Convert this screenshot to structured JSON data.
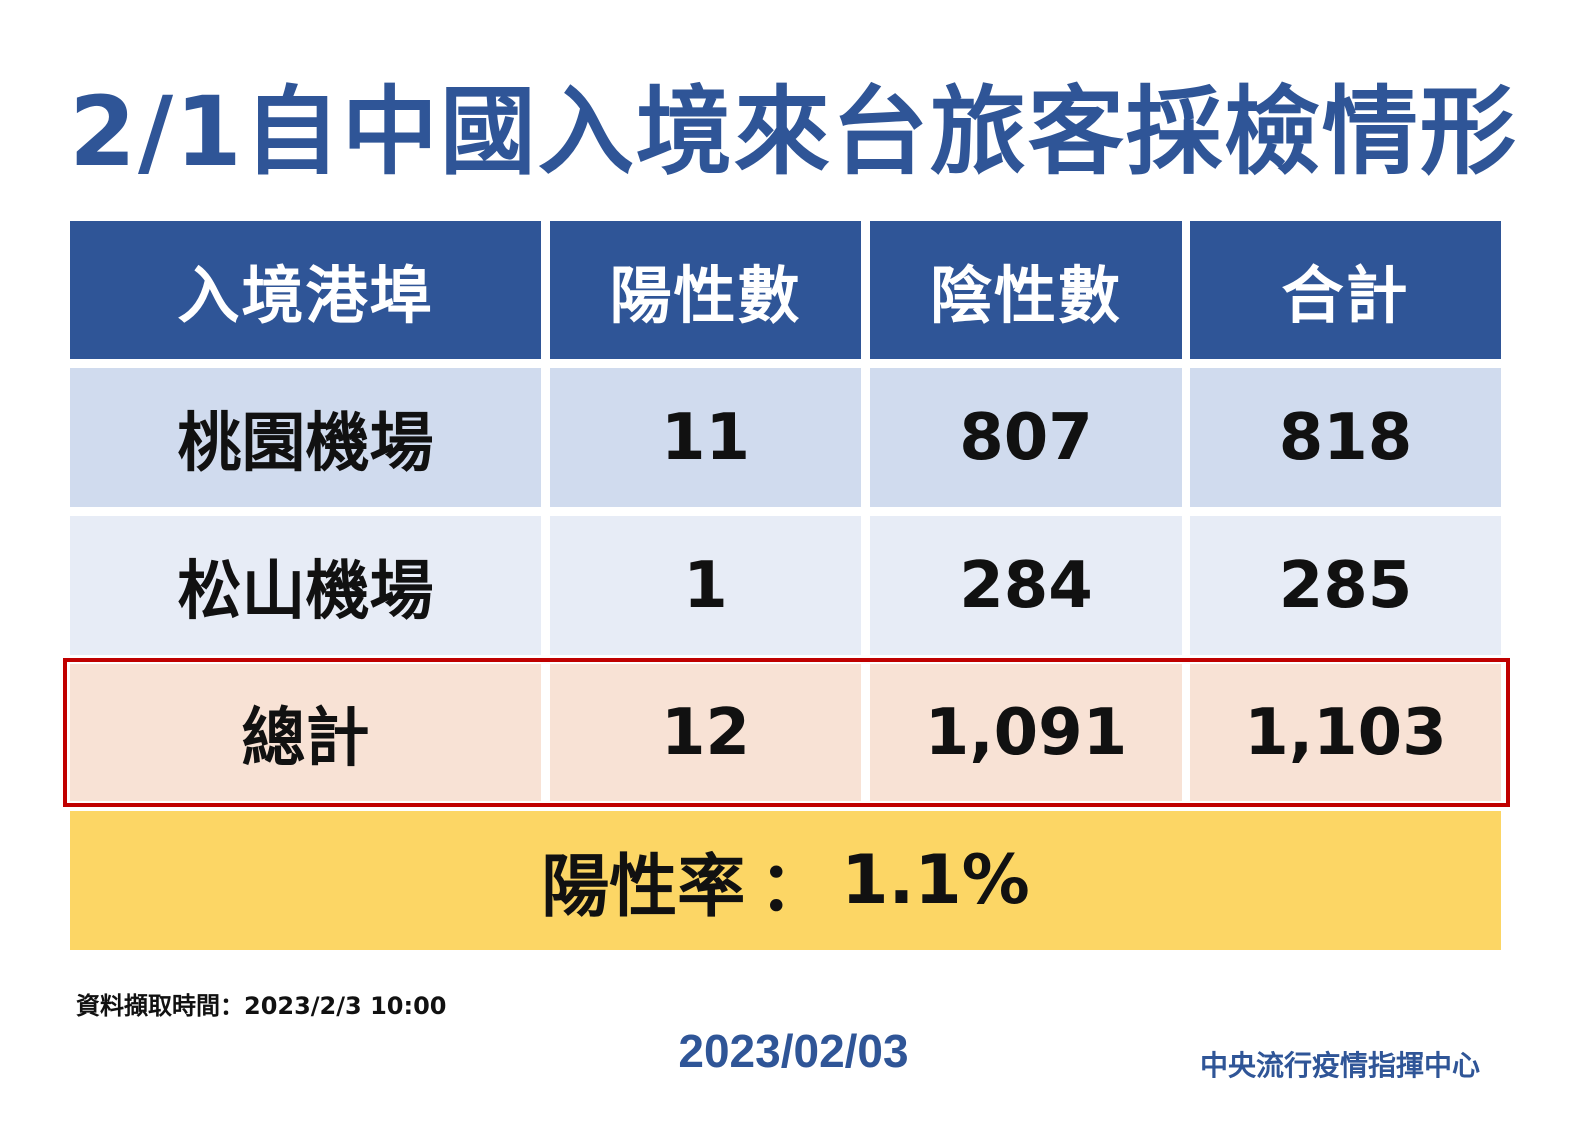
{
  "title": "2/1自中國入境來台旅客採檢情形",
  "table": {
    "headers": [
      "入境港埠",
      "陽性數",
      "陰性數",
      "合計"
    ],
    "rows": [
      {
        "port": "桃園機場",
        "positive": "11",
        "negative": "807",
        "total": "818"
      },
      {
        "port": "松山機場",
        "positive": "1",
        "negative": "284",
        "total": "285"
      }
    ],
    "total_row": {
      "label": "總計",
      "positive": "12",
      "negative": "1,091",
      "total": "1,103"
    }
  },
  "positive_rate": {
    "label": "陽性率",
    "separator": "：",
    "value": "1.1%"
  },
  "data_time": "資料擷取時間：2023/2/3 10:00",
  "date": "2023/02/03",
  "organization": "中央流行疫情指揮中心",
  "colors": {
    "title_blue": "#2f5597",
    "header_bg": "#2f5597",
    "row1_bg": "#d0dbee",
    "row2_bg": "#e7ecf6",
    "total_bg": "#f8e2d5",
    "total_border": "#c00000",
    "rate_bg": "#fcd665"
  }
}
